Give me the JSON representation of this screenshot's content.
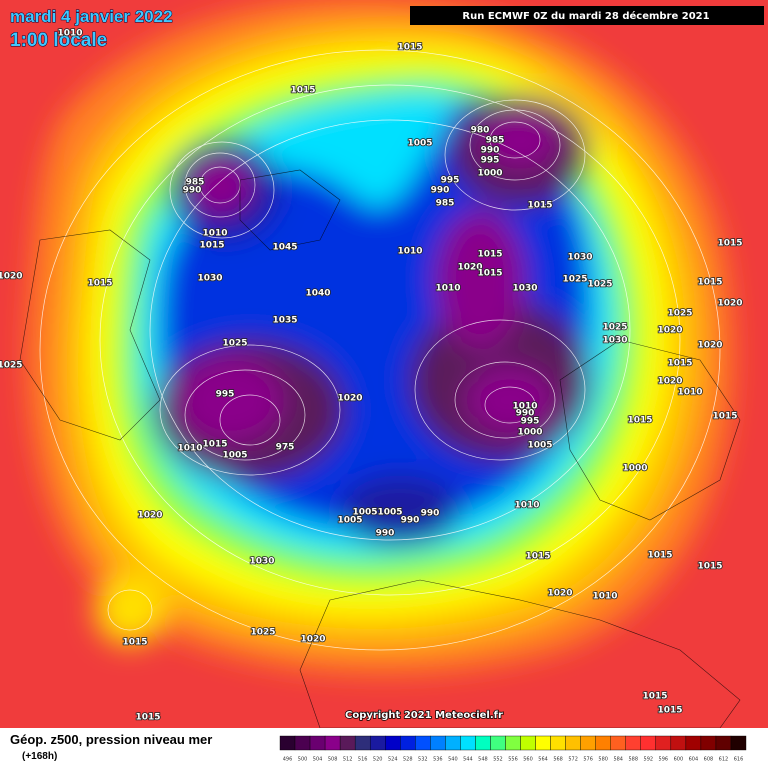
{
  "header": {
    "date": "mardi 4 janvier 2022",
    "time": "1:00 locale",
    "run": "Run ECMWF 0Z du mardi 28 décembre 2021"
  },
  "copyright": "Copyright 2021 Meteociel.fr",
  "legend": {
    "title": "Géop. z500, pression niveau mer",
    "lead": "(+168h)",
    "levels": [
      496,
      500,
      504,
      508,
      512,
      516,
      520,
      524,
      528,
      532,
      536,
      540,
      544,
      548,
      552,
      556,
      560,
      564,
      568,
      572,
      576,
      580,
      584,
      588,
      592,
      596,
      600,
      604,
      608,
      612,
      616
    ],
    "colors": [
      "#2a0030",
      "#4b0050",
      "#6a0070",
      "#8a008a",
      "#5a1a5a",
      "#2e2e7a",
      "#1a1aa0",
      "#0000c8",
      "#0020e0",
      "#0050ff",
      "#0080ff",
      "#00b0ff",
      "#00e0ff",
      "#00ffc0",
      "#40ff80",
      "#80ff40",
      "#c0ff00",
      "#ffff00",
      "#ffe000",
      "#ffc000",
      "#ffa000",
      "#ff8000",
      "#ff6020",
      "#ff4030",
      "#ff3030",
      "#e02020",
      "#c01010",
      "#a00000",
      "#800000",
      "#600000",
      "#200000"
    ]
  },
  "isobar_labels": [
    1010,
    1015,
    1015,
    1005,
    980,
    985,
    990,
    995,
    1000,
    995,
    990,
    985,
    1015,
    985,
    990,
    1010,
    1015,
    1045,
    1010,
    1015,
    1020,
    1015,
    1030,
    1025,
    1025,
    1010,
    1030,
    1030,
    1015,
    1040,
    1035,
    1025,
    995,
    1020,
    1025,
    1030,
    1020,
    1015,
    1015,
    1015,
    1025,
    1020,
    1020,
    1015,
    1020,
    1010,
    1015,
    1010,
    990,
    995,
    1000,
    1005,
    1010,
    1015,
    1005,
    975,
    1000,
    1010,
    1020,
    1005,
    1005,
    1005,
    990,
    990,
    990,
    1015,
    1015,
    1015,
    1030,
    1020,
    1010,
    1025,
    1020,
    1015,
    1015,
    1015,
    1015,
    1025,
    1020
  ]
}
